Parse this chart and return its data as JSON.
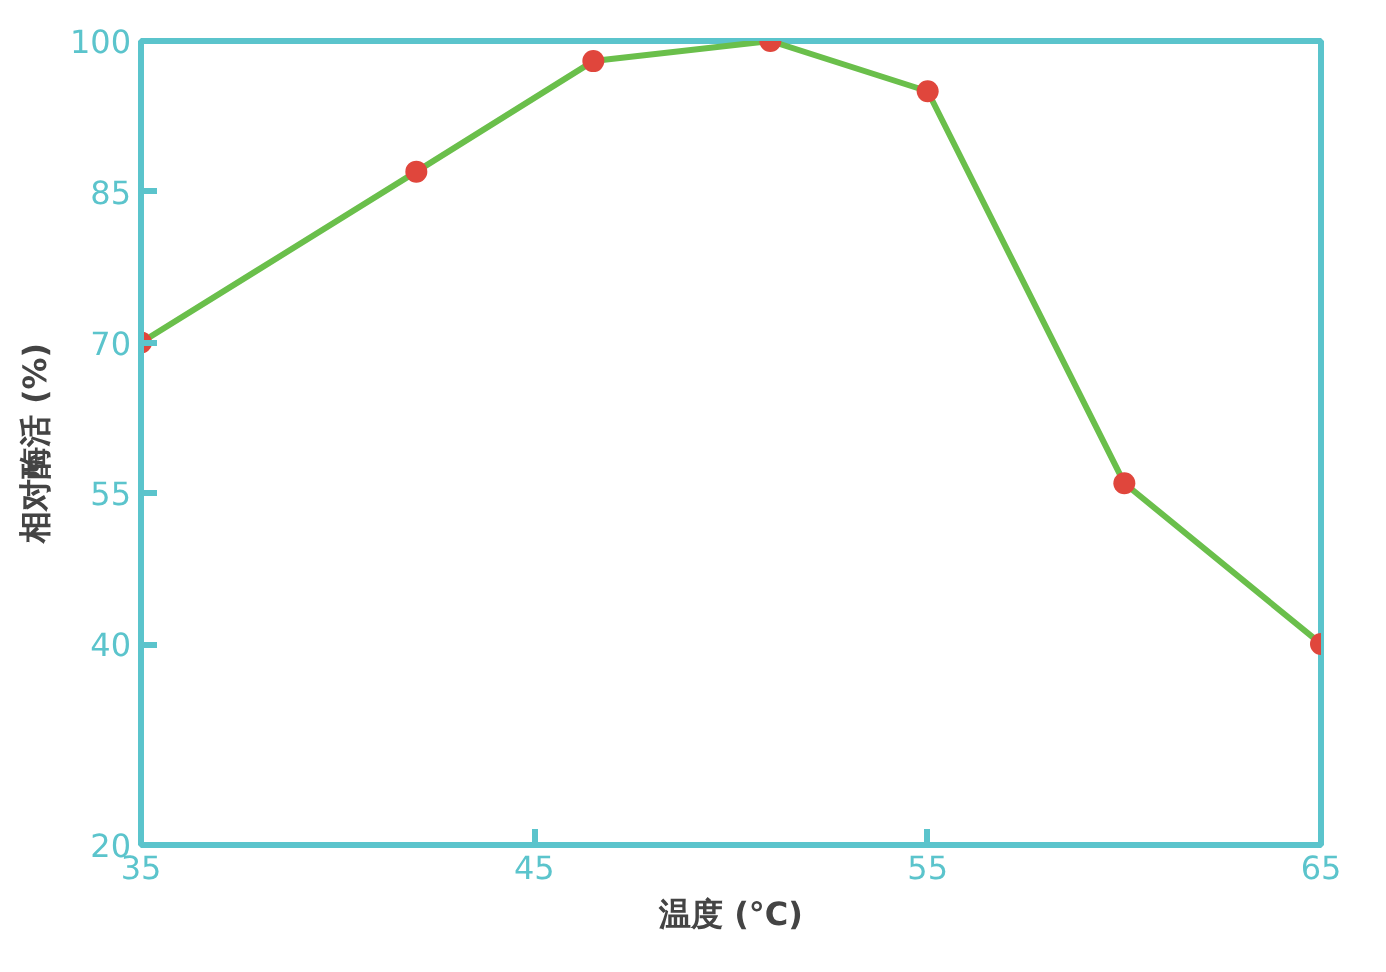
{
  "chart_data": {
    "type": "line",
    "xlabel": "温度 (°C)",
    "ylabel": "相对酶活 (%)",
    "x": [
      35,
      42,
      46.5,
      51,
      55,
      60,
      65
    ],
    "series": [
      {
        "color": "#6abf4b",
        "values": [
          70,
          87,
          98,
          100,
          95,
          56,
          40
        ]
      }
    ],
    "marker": "circle",
    "line_style": "solid",
    "xlim": [
      35,
      65
    ],
    "xticks": [
      35,
      45,
      55,
      65
    ],
    "ylim": [
      20,
      100
    ],
    "yticks": [
      20,
      40,
      55,
      70,
      85,
      100
    ],
    "grid": false
  }
}
